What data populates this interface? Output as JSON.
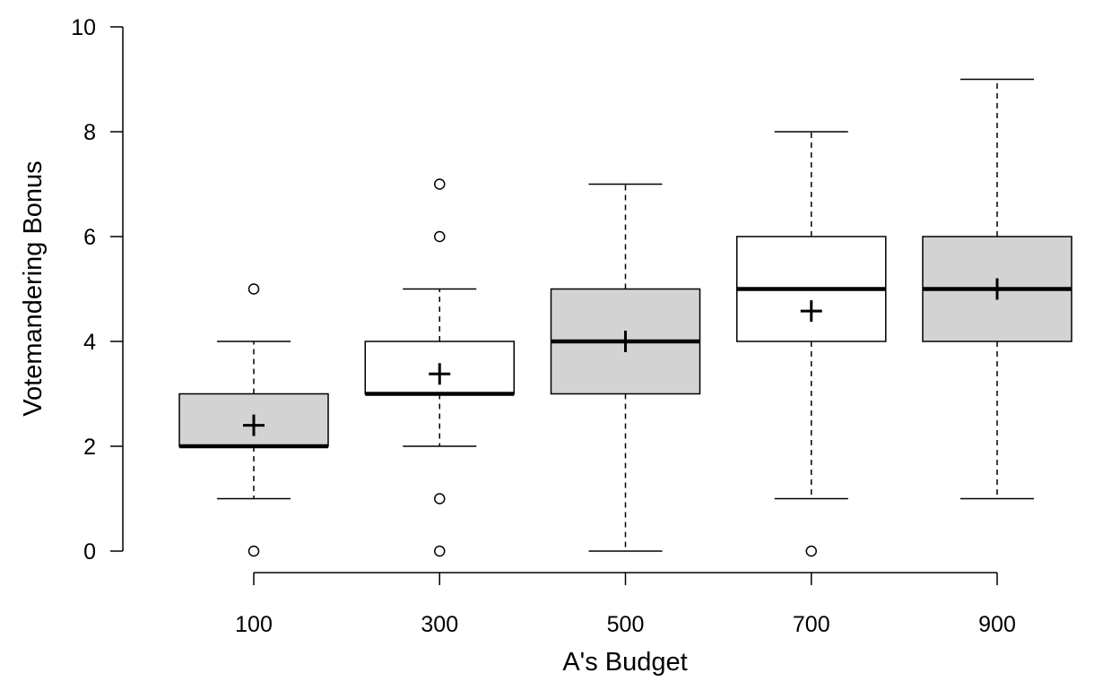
{
  "chart_data": {
    "type": "boxplot",
    "xlabel": "A's Budget",
    "ylabel": "Votemandering Bonus",
    "ylim": [
      0,
      10
    ],
    "y_ticks": [
      0,
      2,
      4,
      6,
      8,
      10
    ],
    "categories": [
      "100",
      "300",
      "500",
      "700",
      "900"
    ],
    "boxes": [
      {
        "category": "100",
        "fill": "#d3d3d3",
        "whisker_low": 1,
        "q1": 2,
        "median": 2,
        "q3": 3,
        "whisker_high": 4,
        "mean": 2.4,
        "outliers": [
          0,
          5
        ]
      },
      {
        "category": "300",
        "fill": "#ffffff",
        "whisker_low": 2,
        "q1": 3,
        "median": 3,
        "q3": 4,
        "whisker_high": 5,
        "mean": 3.38,
        "outliers": [
          0,
          1,
          6,
          7
        ]
      },
      {
        "category": "500",
        "fill": "#d3d3d3",
        "whisker_low": 0,
        "q1": 3,
        "median": 4,
        "q3": 5,
        "whisker_high": 7,
        "mean": 4.0,
        "outliers": []
      },
      {
        "category": "700",
        "fill": "#ffffff",
        "whisker_low": 1,
        "q1": 4,
        "median": 5,
        "q3": 6,
        "whisker_high": 8,
        "mean": 4.58,
        "outliers": [
          0
        ]
      },
      {
        "category": "900",
        "fill": "#d3d3d3",
        "whisker_low": 1,
        "q1": 4,
        "median": 5,
        "q3": 6,
        "whisker_high": 9,
        "mean": 5.0,
        "outliers": []
      }
    ],
    "grid": false,
    "legend": "none",
    "mean_marker": "plus"
  }
}
